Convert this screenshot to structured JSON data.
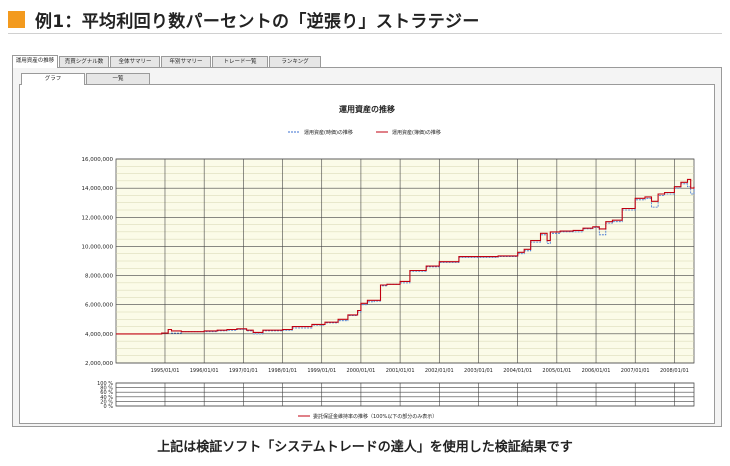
{
  "page": {
    "title": "例1：平均利回り数パーセントの「逆張り」ストラテジー",
    "caption": "上記は検証ソフト「システムトレードの達人」を使用した検証結果です",
    "accent_color": "#f39a1e"
  },
  "tabs": [
    {
      "label": "運用資産の推移",
      "active": true
    },
    {
      "label": "売買シグナル数",
      "active": false
    },
    {
      "label": "全体サマリー",
      "active": false
    },
    {
      "label": "年別サマリー",
      "active": false
    },
    {
      "label": "トレード一覧",
      "active": false
    },
    {
      "label": "ランキング",
      "active": false
    }
  ],
  "subtabs": [
    {
      "label": "グラフ",
      "active": true
    },
    {
      "label": "一覧",
      "active": false
    }
  ],
  "chart_data": [
    {
      "type": "line",
      "title": "運用資産の推移",
      "legend_position": "top",
      "grid": true,
      "background": "#fbfbe8",
      "ylim": [
        2000000,
        16000000
      ],
      "y_ticks": [
        "2,000,000",
        "4,000,000",
        "6,000,000",
        "8,000,000",
        "10,000,000",
        "12,000,000",
        "14,000,000",
        "16,000,000"
      ],
      "x_tick_labels": [
        "1995/01/01",
        "1996/01/01",
        "1997/01/01",
        "1998/01/01",
        "1999/01/01",
        "2000/01/01",
        "2001/01/01",
        "2002/01/01",
        "2003/01/01",
        "2004/01/01",
        "2005/01/01",
        "2006/01/01",
        "2007/01/01",
        "2008/01/01"
      ],
      "xlim": [
        "1993/10/01",
        "2008/07/01"
      ],
      "series": [
        {
          "name": "運用資産(時価)の推移",
          "color": "#3a6fd0",
          "style": "dashed",
          "x": [
            "1993/10/01",
            "1994/12/01",
            "1995/02/01",
            "1995/03/01",
            "1995/06/01",
            "1996/01/01",
            "1996/05/01",
            "1996/08/01",
            "1996/11/01",
            "1997/02/01",
            "1997/04/01",
            "1997/07/01",
            "1998/01/01",
            "1998/04/01",
            "1998/10/01",
            "1999/02/01",
            "1999/06/01",
            "1999/09/01",
            "1999/12/01",
            "2000/01/01",
            "2000/03/01",
            "2000/05/01",
            "2000/07/01",
            "2000/09/01",
            "2001/01/01",
            "2001/04/01",
            "2001/09/01",
            "2002/01/01",
            "2002/04/01",
            "2002/07/01",
            "2003/01/01",
            "2003/07/01",
            "2004/01/01",
            "2004/03/01",
            "2004/05/01",
            "2004/08/01",
            "2004/10/01",
            "2004/11/01",
            "2005/02/01",
            "2005/06/01",
            "2005/09/01",
            "2005/12/01",
            "2006/02/01",
            "2006/04/01",
            "2006/06/01",
            "2006/09/01",
            "2007/01/01",
            "2007/04/01",
            "2007/06/01",
            "2007/08/01",
            "2007/10/01",
            "2008/01/01",
            "2008/03/01",
            "2008/05/01",
            "2008/06/01",
            "2008/07/01"
          ],
          "values": [
            4000000,
            4050000,
            4300000,
            4050000,
            4150000,
            4150000,
            4200000,
            4250000,
            4300000,
            4200000,
            4000000,
            4200000,
            4250000,
            4400000,
            4600000,
            4750000,
            4900000,
            5250000,
            5500000,
            6000000,
            6200000,
            6250000,
            7300000,
            7400000,
            7500000,
            8300000,
            8600000,
            8900000,
            8900000,
            9250000,
            9250000,
            9300000,
            9500000,
            9700000,
            10300000,
            10800000,
            10200000,
            10900000,
            11000000,
            11000000,
            11200000,
            11300000,
            10800000,
            11600000,
            11700000,
            12500000,
            13200000,
            13300000,
            12700000,
            13500000,
            13600000,
            14000000,
            14300000,
            14100000,
            13600000,
            14100000
          ]
        },
        {
          "name": "運用資産(簿価)の推移",
          "color": "#c00010",
          "style": "solid",
          "x": [
            "1993/10/01",
            "1994/12/01",
            "1995/02/01",
            "1995/03/01",
            "1995/06/01",
            "1996/01/01",
            "1996/05/01",
            "1996/08/01",
            "1996/11/01",
            "1997/02/01",
            "1997/04/01",
            "1997/07/01",
            "1998/01/01",
            "1998/04/01",
            "1998/10/01",
            "1999/02/01",
            "1999/06/01",
            "1999/09/01",
            "1999/12/01",
            "2000/01/01",
            "2000/03/01",
            "2000/05/01",
            "2000/07/01",
            "2000/09/01",
            "2001/01/01",
            "2001/04/01",
            "2001/09/01",
            "2002/01/01",
            "2002/04/01",
            "2002/07/01",
            "2003/01/01",
            "2003/07/01",
            "2004/01/01",
            "2004/03/01",
            "2004/05/01",
            "2004/08/01",
            "2004/10/01",
            "2004/11/01",
            "2005/02/01",
            "2005/06/01",
            "2005/09/01",
            "2005/12/01",
            "2006/02/01",
            "2006/04/01",
            "2006/06/01",
            "2006/09/01",
            "2007/01/01",
            "2007/04/01",
            "2007/06/01",
            "2007/08/01",
            "2007/10/01",
            "2008/01/01",
            "2008/03/01",
            "2008/05/01",
            "2008/06/01",
            "2008/07/01"
          ],
          "values": [
            4000000,
            4050000,
            4300000,
            4200000,
            4150000,
            4200000,
            4250000,
            4300000,
            4350000,
            4250000,
            4100000,
            4250000,
            4300000,
            4500000,
            4650000,
            4800000,
            5000000,
            5300000,
            5600000,
            6100000,
            6300000,
            6300000,
            7350000,
            7400000,
            7600000,
            8350000,
            8650000,
            8950000,
            8950000,
            9300000,
            9300000,
            9350000,
            9600000,
            9800000,
            10400000,
            10900000,
            10400000,
            11000000,
            11050000,
            11100000,
            11250000,
            11350000,
            11200000,
            11700000,
            11800000,
            12600000,
            13300000,
            13400000,
            13100000,
            13600000,
            13700000,
            14100000,
            14400000,
            14600000,
            14000000,
            14100000
          ]
        }
      ]
    },
    {
      "type": "line",
      "legend_position": "bottom",
      "grid": true,
      "ylim": [
        0,
        100
      ],
      "y_ticks": [
        "0 %",
        "20 %",
        "40 %",
        "60 %",
        "80 %",
        "100 %"
      ],
      "series": [
        {
          "name": "委託保証金維持率の推移（100%以下の部分のみ表示）",
          "color": "#c00010",
          "values": []
        }
      ]
    }
  ]
}
